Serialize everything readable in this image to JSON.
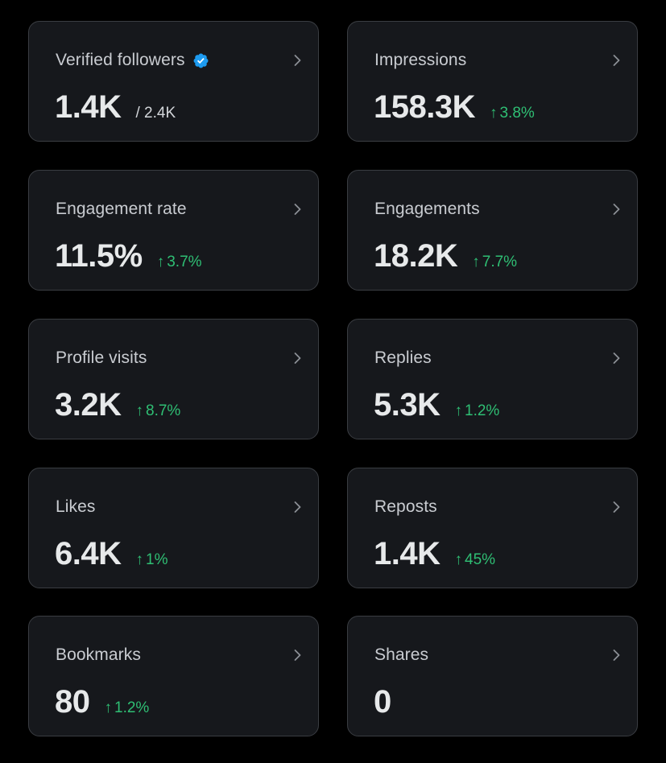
{
  "colors": {
    "background": "#000000",
    "card_background": "#16181c",
    "card_border": "#3a3d42",
    "label_text": "#c9ccd1",
    "value_text": "#e7e9ea",
    "positive_delta": "#2fbf74",
    "verified_blue": "#1d9bf0"
  },
  "icons": {
    "chevron": "chevron-right-icon",
    "verified": "verified-badge-icon",
    "up_arrow": "arrow-up-icon"
  },
  "cards": [
    {
      "label": "Verified followers",
      "value": "1.4K",
      "suffix": "/ 2.4K"
    },
    {
      "label": "Impressions",
      "value": "158.3K",
      "arrow": "↑",
      "delta": "3.8%"
    },
    {
      "label": "Engagement rate",
      "value": "11.5%",
      "arrow": "↑",
      "delta": "3.7%"
    },
    {
      "label": "Engagements",
      "value": "18.2K",
      "arrow": "↑",
      "delta": "7.7%"
    },
    {
      "label": "Profile visits",
      "value": "3.2K",
      "arrow": "↑",
      "delta": "8.7%"
    },
    {
      "label": "Replies",
      "value": "5.3K",
      "arrow": "↑",
      "delta": "1.2%"
    },
    {
      "label": "Likes",
      "value": "6.4K",
      "arrow": "↑",
      "delta": "1%"
    },
    {
      "label": "Reposts",
      "value": "1.4K",
      "arrow": "↑",
      "delta": "45%"
    },
    {
      "label": "Bookmarks",
      "value": "80",
      "arrow": "↑",
      "delta": "1.2%"
    },
    {
      "label": "Shares",
      "value": "0"
    }
  ]
}
